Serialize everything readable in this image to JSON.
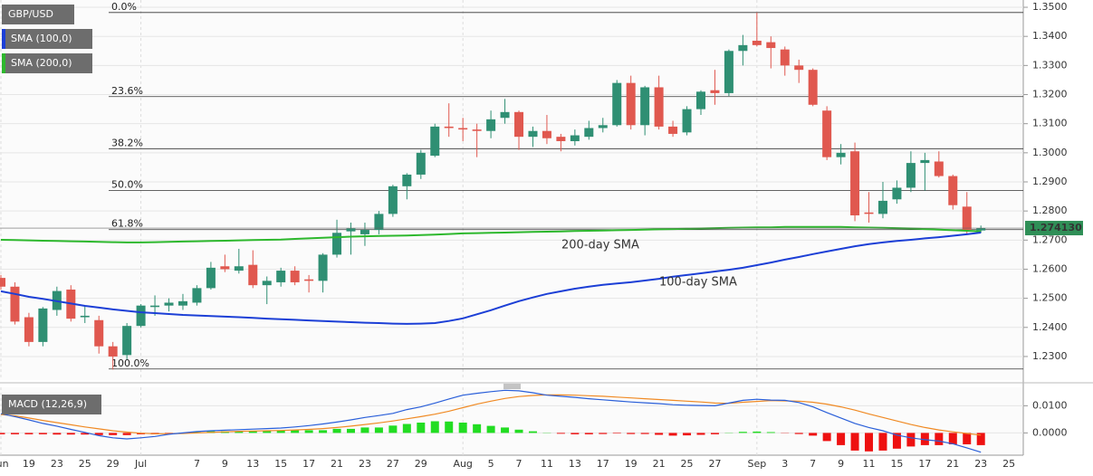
{
  "chart_data": [
    {
      "type": "candlestick",
      "ylim": [
        1.2219,
        1.3525
      ],
      "yticks": [
        {
          "value": 1.23,
          "label": "1.2300"
        },
        {
          "value": 1.24,
          "label": "1.2400"
        },
        {
          "value": 1.25,
          "label": "1.2500"
        },
        {
          "value": 1.26,
          "label": "1.2600"
        },
        {
          "value": 1.27,
          "label": "1.2700"
        },
        {
          "value": 1.28,
          "label": "1.2800"
        },
        {
          "value": 1.29,
          "label": "1.2900"
        },
        {
          "value": 1.3,
          "label": "1.3000"
        },
        {
          "value": 1.31,
          "label": "1.3100"
        },
        {
          "value": 1.32,
          "label": "1.3200"
        },
        {
          "value": 1.33,
          "label": "1.3300"
        },
        {
          "value": 1.34,
          "label": "1.3400"
        },
        {
          "value": 1.35,
          "label": "1.3500"
        }
      ],
      "grid": true,
      "candles": {
        "name": "GBP/USD",
        "up_color": "#2f8f73",
        "down_color": "#e0584f",
        "open": [
          1.257,
          1.254,
          1.2435,
          1.235,
          1.246,
          1.253,
          1.2435,
          1.2425,
          1.2335,
          1.2305,
          1.2405,
          1.247,
          1.2475,
          1.2475,
          1.2485,
          1.2535,
          1.261,
          1.2595,
          1.2615,
          1.2545,
          1.2555,
          1.2595,
          1.2565,
          1.256,
          1.265,
          1.273,
          1.272,
          1.2735,
          1.279,
          1.2885,
          1.2925,
          1.299,
          1.309,
          1.3085,
          1.308,
          1.3075,
          1.312,
          1.314,
          1.3055,
          1.3075,
          1.3055,
          1.304,
          1.3055,
          1.3085,
          1.3095,
          1.324,
          1.3095,
          1.3225,
          1.309,
          1.307,
          1.315,
          1.3215,
          1.3205,
          1.335,
          1.3385,
          1.338,
          1.3355,
          1.33,
          1.3285,
          1.3145,
          1.2985,
          1.3005,
          1.2795,
          1.279,
          1.284,
          1.288,
          1.2965,
          1.297,
          1.292,
          1.2815,
          1.2733,
          null,
          null
        ],
        "high": [
          1.258,
          1.2555,
          1.245,
          1.247,
          1.254,
          1.2545,
          1.2475,
          1.244,
          1.235,
          1.2415,
          1.248,
          1.251,
          1.25,
          1.2515,
          1.2545,
          1.2625,
          1.265,
          1.267,
          1.2665,
          1.2575,
          1.2605,
          1.261,
          1.258,
          1.2655,
          1.277,
          1.276,
          1.276,
          1.28,
          1.289,
          1.293,
          1.301,
          1.31,
          1.317,
          1.312,
          1.31,
          1.3145,
          1.3185,
          1.3145,
          1.309,
          1.313,
          1.3065,
          1.308,
          1.311,
          1.312,
          1.325,
          1.3265,
          1.323,
          1.3265,
          1.311,
          1.316,
          1.3215,
          1.3285,
          1.3355,
          1.3405,
          1.3482,
          1.34,
          1.3365,
          1.332,
          1.329,
          1.316,
          1.303,
          1.3035,
          1.2865,
          1.29,
          1.2905,
          1.3005,
          1.3,
          1.3005,
          1.2925,
          1.2865,
          1.275,
          null,
          null
        ],
        "low": [
          1.253,
          1.241,
          1.2335,
          1.2335,
          1.244,
          1.242,
          1.2415,
          1.231,
          1.2255,
          1.229,
          1.24,
          1.244,
          1.2455,
          1.246,
          1.2475,
          1.253,
          1.259,
          1.2585,
          1.2535,
          1.248,
          1.254,
          1.2545,
          1.252,
          1.252,
          1.264,
          1.265,
          1.268,
          1.272,
          1.278,
          1.284,
          1.291,
          1.2985,
          1.3055,
          1.304,
          1.2985,
          1.305,
          1.31,
          1.301,
          1.302,
          1.303,
          1.3005,
          1.3025,
          1.3045,
          1.307,
          1.309,
          1.308,
          1.306,
          1.308,
          1.3055,
          1.306,
          1.313,
          1.3165,
          1.3195,
          1.33,
          1.3365,
          1.329,
          1.3265,
          1.324,
          1.316,
          1.2975,
          1.296,
          1.2765,
          1.276,
          1.2775,
          1.2825,
          1.2865,
          1.287,
          1.2915,
          1.2805,
          1.272,
          1.2725,
          null,
          null
        ],
        "close": [
          1.254,
          1.242,
          1.235,
          1.2465,
          1.2525,
          1.243,
          1.244,
          1.2335,
          1.23,
          1.2405,
          1.2475,
          1.2475,
          1.2485,
          1.249,
          1.2535,
          1.2605,
          1.26,
          1.261,
          1.2545,
          1.256,
          1.2595,
          1.2555,
          1.256,
          1.265,
          1.2725,
          1.274,
          1.2735,
          1.279,
          1.2885,
          1.2925,
          1.3,
          1.309,
          1.3085,
          1.308,
          1.3075,
          1.3115,
          1.314,
          1.3055,
          1.3075,
          1.305,
          1.304,
          1.306,
          1.3085,
          1.3095,
          1.324,
          1.3095,
          1.3225,
          1.309,
          1.3065,
          1.315,
          1.321,
          1.3205,
          1.335,
          1.337,
          1.337,
          1.336,
          1.33,
          1.3285,
          1.3165,
          1.2985,
          1.3,
          1.2785,
          1.279,
          1.2835,
          1.288,
          1.2965,
          1.2975,
          1.292,
          1.282,
          1.2735,
          1.2741,
          null,
          null
        ]
      },
      "sma100": {
        "name": "SMA (100,0)",
        "annotation": "100-day SMA",
        "color": "#1c3fd6",
        "values": [
          1.2524,
          1.2515,
          1.2505,
          1.2498,
          1.249,
          1.2482,
          1.2474,
          1.2468,
          1.2462,
          1.2457,
          1.2452,
          1.2449,
          1.2446,
          1.2443,
          1.2441,
          1.2439,
          1.2437,
          1.2435,
          1.2433,
          1.243,
          1.2428,
          1.2426,
          1.2424,
          1.2422,
          1.242,
          1.2418,
          1.2416,
          1.2415,
          1.2413,
          1.2412,
          1.2413,
          1.2415,
          1.2422,
          1.2431,
          1.2445,
          1.2459,
          1.2475,
          1.249,
          1.2503,
          1.2515,
          1.2524,
          1.2533,
          1.254,
          1.2546,
          1.2551,
          1.2555,
          1.2561,
          1.2567,
          1.2574,
          1.258,
          1.2586,
          1.2592,
          1.2598,
          1.2605,
          1.2614,
          1.2623,
          1.2633,
          1.2642,
          1.2652,
          1.2661,
          1.267,
          1.2679,
          1.2686,
          1.2692,
          1.2697,
          1.2701,
          1.2706,
          1.271,
          1.2715,
          1.272,
          1.2726,
          null,
          null
        ]
      },
      "sma200": {
        "name": "SMA (200,0)",
        "annotation": "200-day SMA",
        "color": "#2db82d",
        "values": [
          1.2701,
          1.27,
          1.2699,
          1.2698,
          1.2697,
          1.2696,
          1.2695,
          1.2694,
          1.2693,
          1.2692,
          1.2692,
          1.2693,
          1.2694,
          1.2695,
          1.2696,
          1.2697,
          1.2698,
          1.2699,
          1.27,
          1.2701,
          1.2702,
          1.2704,
          1.2706,
          1.2708,
          1.271,
          1.2712,
          1.2713,
          1.2714,
          1.2715,
          1.2716,
          1.2717,
          1.2719,
          1.2721,
          1.2723,
          1.2724,
          1.2725,
          1.2726,
          1.2727,
          1.2728,
          1.2729,
          1.273,
          1.2731,
          1.2732,
          1.2733,
          1.2734,
          1.2735,
          1.2736,
          1.2737,
          1.2738,
          1.2739,
          1.274,
          1.2741,
          1.2742,
          1.2743,
          1.2744,
          1.2744,
          1.2745,
          1.2745,
          1.2745,
          1.2745,
          1.2745,
          1.2744,
          1.2743,
          1.2742,
          1.2741,
          1.274,
          1.2738,
          1.2736,
          1.2734,
          1.2732,
          1.273,
          null,
          null
        ]
      },
      "fib_levels": [
        {
          "label": "0.0%",
          "value": 1.3482
        },
        {
          "label": "23.6%",
          "value": 1.3193
        },
        {
          "label": "38.2%",
          "value": 1.3014
        },
        {
          "label": "50.0%",
          "value": 1.287
        },
        {
          "label": "61.8%",
          "value": 1.2736
        },
        {
          "label": "100.0%",
          "value": 1.2257
        }
      ],
      "last_price": {
        "value": 1.27413,
        "label": "1.274130",
        "color": "#2f8f57"
      }
    },
    {
      "type": "macd",
      "title": "MACD (12,26,9)",
      "categories": [
        "Jun",
        null,
        "19",
        null,
        "23",
        null,
        "25",
        null,
        "29",
        null,
        "Jul",
        null,
        null,
        null,
        "7",
        null,
        "9",
        null,
        "13",
        null,
        "15",
        null,
        "17",
        null,
        "21",
        null,
        "23",
        null,
        "27",
        null,
        "29",
        null,
        null,
        "Aug",
        null,
        "5",
        null,
        "7",
        null,
        "11",
        null,
        "13",
        null,
        "17",
        null,
        "19",
        null,
        "21",
        null,
        "25",
        null,
        "27",
        null,
        null,
        "Sep",
        null,
        "3",
        null,
        "7",
        null,
        "9",
        null,
        "11",
        null,
        "15",
        null,
        "17",
        null,
        "21",
        null,
        "23",
        null,
        "25"
      ],
      "ylim": [
        -0.0082,
        0.0168
      ],
      "yticks": [
        {
          "value": 0.0,
          "label": "0.0000"
        },
        {
          "value": 0.01,
          "label": "0.0100"
        }
      ],
      "grid": true,
      "macd": {
        "color": "#2a5fd9",
        "values": [
          0.0071,
          0.006,
          0.0048,
          0.0035,
          0.0025,
          0.0013,
          0.0002,
          -0.001,
          -0.0018,
          -0.0022,
          -0.0018,
          -0.0013,
          -0.0005,
          0.0,
          0.0005,
          0.0008,
          0.001,
          0.0012,
          0.0014,
          0.0016,
          0.0018,
          0.0022,
          0.0027,
          0.0033,
          0.004,
          0.0048,
          0.0057,
          0.0064,
          0.0072,
          0.0086,
          0.0096,
          0.011,
          0.0125,
          0.0139,
          0.0146,
          0.0152,
          0.0157,
          0.0155,
          0.0148,
          0.0139,
          0.0135,
          0.0131,
          0.0126,
          0.0122,
          0.0118,
          0.0114,
          0.0111,
          0.0108,
          0.0104,
          0.0102,
          0.0101,
          0.01,
          0.011,
          0.012,
          0.0124,
          0.0121,
          0.012,
          0.0112,
          0.0096,
          0.0075,
          0.0055,
          0.0035,
          0.002,
          0.0008,
          -0.0008,
          -0.0018,
          -0.0025,
          -0.003,
          -0.004,
          -0.0055,
          -0.0071,
          null,
          null
        ]
      },
      "signal": {
        "color": "#f08a24",
        "values": [
          0.0068,
          0.0063,
          0.0055,
          0.0046,
          0.0038,
          0.003,
          0.0022,
          0.0015,
          0.0008,
          0.0003,
          -0.0001,
          -0.0003,
          -0.0003,
          -0.0002,
          0.0,
          0.0002,
          0.0004,
          0.0006,
          0.0007,
          0.0008,
          0.0009,
          0.0011,
          0.0013,
          0.0016,
          0.002,
          0.0025,
          0.0031,
          0.0037,
          0.0044,
          0.0052,
          0.006,
          0.0069,
          0.008,
          0.0093,
          0.0106,
          0.0117,
          0.0127,
          0.0134,
          0.0138,
          0.014,
          0.014,
          0.0139,
          0.0137,
          0.0135,
          0.0132,
          0.0129,
          0.0126,
          0.0123,
          0.012,
          0.0117,
          0.0114,
          0.011,
          0.0109,
          0.0113,
          0.0116,
          0.0119,
          0.0118,
          0.0117,
          0.0113,
          0.0106,
          0.0096,
          0.0084,
          0.007,
          0.0057,
          0.0044,
          0.0031,
          0.002,
          0.0011,
          0.0004,
          -0.0002,
          -0.0008,
          null,
          null
        ]
      },
      "histogram": {
        "up_color": "#22dd22",
        "down_color": "#ee1111",
        "values": [
          -0.0005,
          -0.0005,
          -0.0005,
          -0.0005,
          -0.0006,
          -0.0006,
          -0.0006,
          -0.0008,
          -0.0008,
          -0.0008,
          -0.0005,
          -0.0005,
          -0.0002,
          0.0001,
          0.0003,
          0.0006,
          0.0006,
          0.0006,
          0.0008,
          0.0008,
          0.0008,
          0.001,
          0.001,
          0.001,
          0.0015,
          0.0015,
          0.002,
          0.002,
          0.0027,
          0.0033,
          0.0038,
          0.0043,
          0.0042,
          0.0038,
          0.0032,
          0.0026,
          0.002,
          0.0012,
          0.0006,
          0.0001,
          -0.0003,
          -0.0005,
          -0.0005,
          -0.0004,
          -0.0002,
          -0.0004,
          -0.0004,
          -0.0007,
          -0.001,
          -0.0009,
          -0.0007,
          -0.0005,
          0.0001,
          0.0004,
          0.0005,
          0.0003,
          -0.0001,
          -0.0004,
          -0.001,
          -0.003,
          -0.0045,
          -0.0065,
          -0.0068,
          -0.0065,
          -0.0058,
          -0.005,
          -0.0045,
          -0.0045,
          -0.0042,
          -0.0042,
          -0.0045,
          null,
          null
        ]
      }
    }
  ]
}
